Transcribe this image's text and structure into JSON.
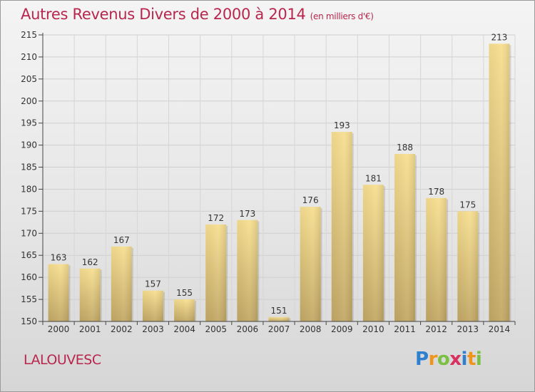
{
  "header": {
    "title": "Autres Revenus Divers de 2000 à 2014",
    "subtitle": "(en milliers d'€)"
  },
  "footer": {
    "commune": "LALOUVESC",
    "logo": {
      "letters": [
        "P",
        "r",
        "o",
        "x",
        "i",
        "t",
        "i"
      ],
      "colors": [
        "#2f7fd0",
        "#f0951c",
        "#7ac143",
        "#d8305f",
        "#2f7fd0",
        "#f0951c",
        "#7ac143"
      ]
    }
  },
  "chart_data": {
    "type": "bar",
    "title": "Autres Revenus Divers de 2000 à 2014",
    "subtitle": "(en milliers d'€)",
    "categories": [
      "2000",
      "2001",
      "2002",
      "2003",
      "2004",
      "2005",
      "2006",
      "2007",
      "2008",
      "2009",
      "2010",
      "2011",
      "2012",
      "2013",
      "2014"
    ],
    "values": [
      163,
      162,
      167,
      157,
      155,
      172,
      173,
      151,
      176,
      193,
      181,
      188,
      178,
      175,
      213
    ],
    "ylim": [
      150,
      215
    ],
    "yticks": [
      150,
      155,
      160,
      165,
      170,
      175,
      180,
      185,
      190,
      195,
      200,
      205,
      210,
      215
    ],
    "grid": true,
    "bar_color_top": "#f7df90",
    "bar_color_bottom": "#c2a866"
  }
}
